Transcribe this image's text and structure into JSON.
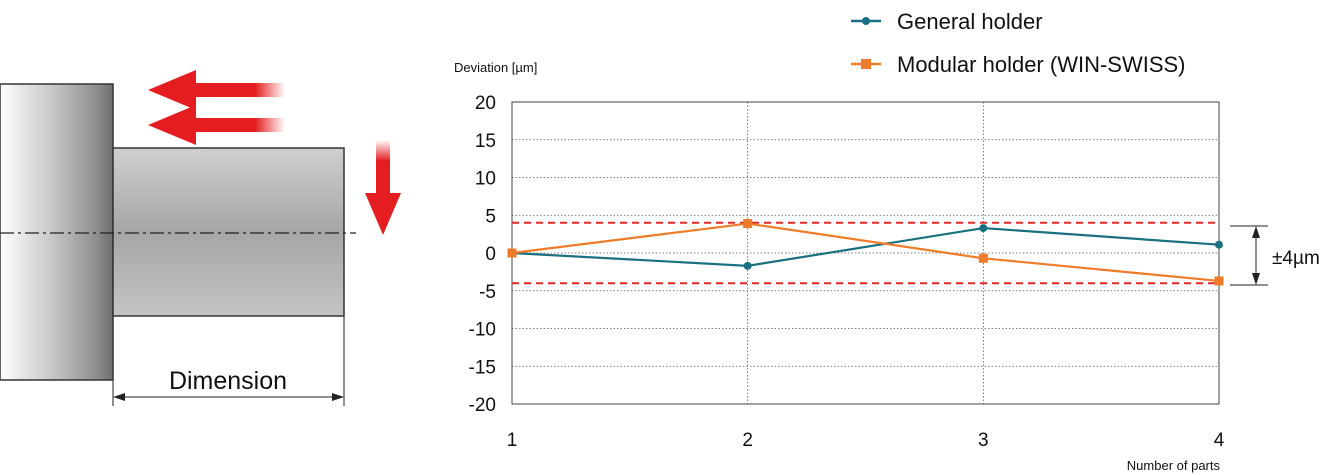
{
  "diagram": {
    "dimension_label": "Dimension"
  },
  "colors": {
    "general": "#1a7080",
    "modular": "#f07b28",
    "tolerance": "#e02828",
    "arrow": "#e41e20",
    "grid": "#555555"
  },
  "chart_data": {
    "type": "line",
    "ylabel": "Deviation [µm]",
    "xlabel": "Number of parts",
    "x": [
      1,
      2,
      3,
      4
    ],
    "xticks": [
      "1",
      "2",
      "3",
      "4"
    ],
    "ylim": [
      -20,
      20
    ],
    "yticks": [
      "20",
      "15",
      "10",
      "5",
      "0",
      "-5",
      "-10",
      "-15",
      "-20"
    ],
    "grid": true,
    "legend_position": "top-right",
    "series": [
      {
        "name": "General holder",
        "marker": "circle",
        "values": [
          0,
          -1.7,
          3.3,
          1.1
        ]
      },
      {
        "name": "Modular holder (WIN-SWISS)",
        "marker": "square",
        "values": [
          0,
          3.9,
          -0.7,
          -3.7
        ]
      }
    ],
    "tolerance": {
      "upper": 4,
      "lower": -4,
      "label": "±4µm"
    }
  }
}
